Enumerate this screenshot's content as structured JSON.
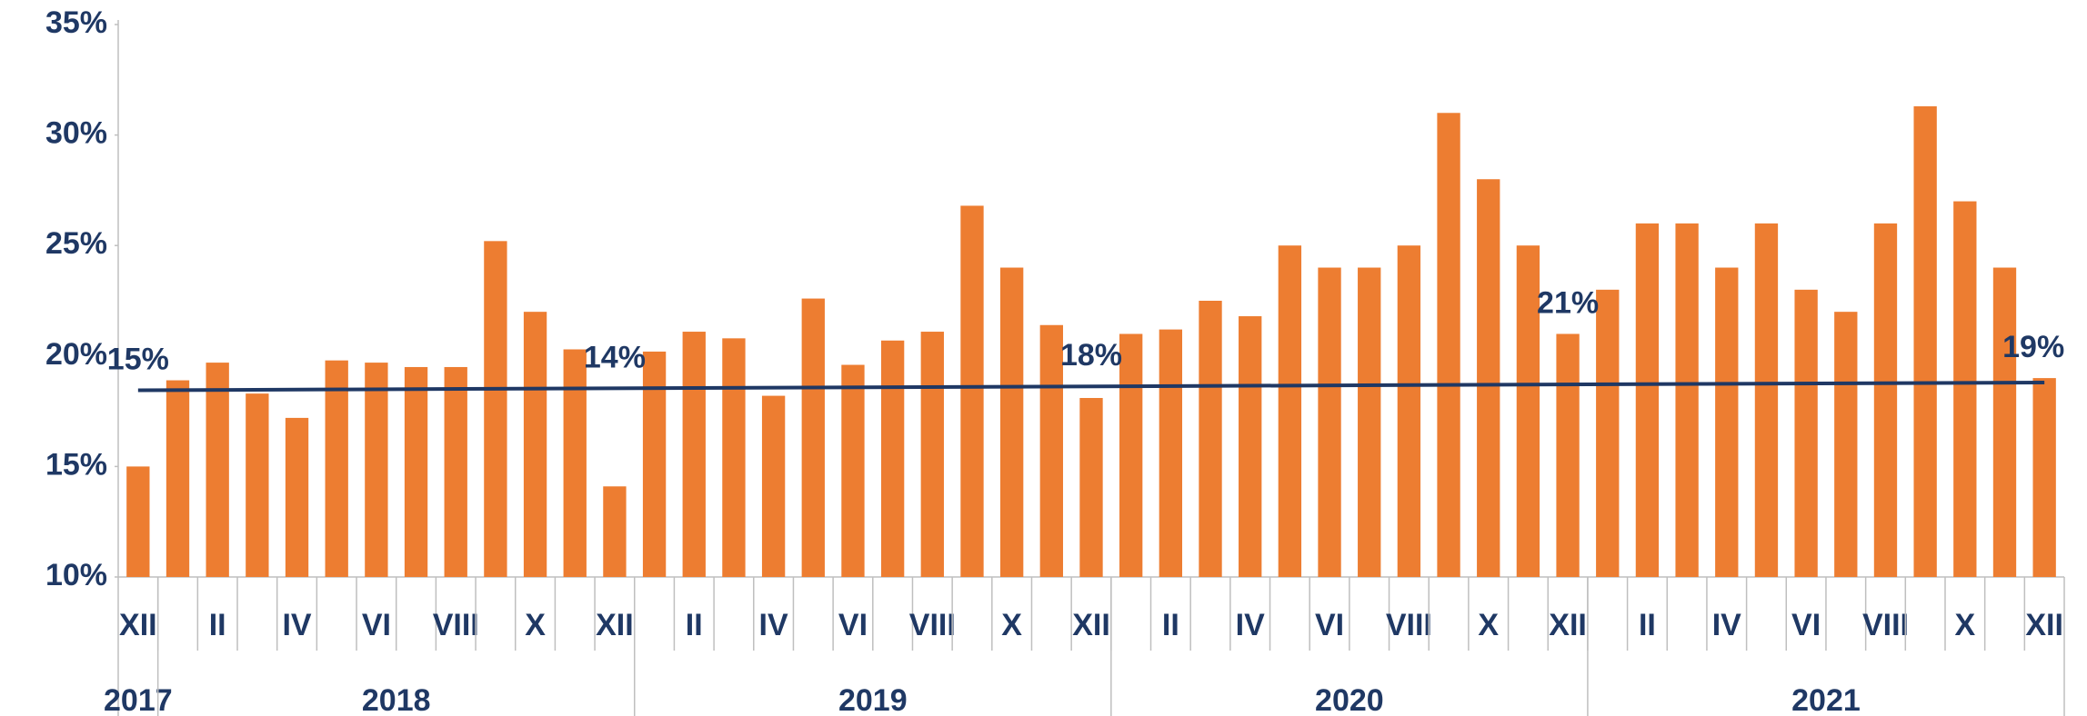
{
  "chart_data": {
    "type": "bar",
    "categories": [
      "XII",
      null,
      "II",
      null,
      "IV",
      null,
      "VI",
      null,
      "VIII",
      null,
      "X",
      null,
      "XII",
      null,
      "II",
      null,
      "IV",
      null,
      "VI",
      null,
      "VIII",
      null,
      "X",
      null,
      "XII",
      null,
      "II",
      null,
      "IV",
      null,
      "VI",
      null,
      "VIII",
      null,
      "X",
      null,
      "XII",
      null,
      "II",
      null,
      "IV",
      null,
      "VI",
      null,
      "VIII",
      null,
      "X",
      null,
      "XII"
    ],
    "year_groups": [
      {
        "label": "2017",
        "months": 1
      },
      {
        "label": "2018",
        "months": 12
      },
      {
        "label": "2019",
        "months": 12
      },
      {
        "label": "2020",
        "months": 12
      },
      {
        "label": "2021",
        "months": 12
      }
    ],
    "values": [
      15.0,
      18.9,
      19.7,
      18.3,
      17.2,
      19.8,
      19.7,
      19.5,
      19.5,
      25.2,
      22.0,
      20.3,
      14.1,
      20.2,
      21.1,
      20.8,
      18.2,
      22.6,
      19.6,
      20.7,
      21.1,
      26.8,
      24.0,
      21.4,
      18.1,
      21.0,
      21.2,
      22.5,
      21.8,
      25.0,
      24.0,
      24.0,
      25.0,
      31.0,
      28.0,
      25.0,
      21.0,
      23.0,
      26.0,
      26.0,
      24.0,
      26.0,
      23.0,
      22.0,
      26.0,
      31.3,
      27.0,
      24.0,
      19.0
    ],
    "value_labels": [
      "15%",
      null,
      null,
      null,
      null,
      null,
      null,
      null,
      null,
      null,
      null,
      null,
      "14%",
      null,
      null,
      null,
      null,
      null,
      null,
      null,
      null,
      null,
      null,
      null,
      "18%",
      null,
      null,
      null,
      null,
      null,
      null,
      null,
      null,
      null,
      null,
      null,
      "21%",
      null,
      null,
      null,
      null,
      null,
      null,
      null,
      null,
      null,
      null,
      null,
      "19%"
    ],
    "color": "#ed7d31",
    "trend": {
      "values": [
        18.45,
        18.8
      ],
      "color": "#1f3864"
    },
    "ylim": [
      10,
      35
    ],
    "yticks": [
      {
        "value": 10,
        "label": "10%"
      },
      {
        "value": 15,
        "label": "15%"
      },
      {
        "value": 20,
        "label": "20%"
      },
      {
        "value": 25,
        "label": "25%"
      },
      {
        "value": 30,
        "label": "30%"
      },
      {
        "value": 35,
        "label": "35%"
      }
    ],
    "grid": false
  }
}
